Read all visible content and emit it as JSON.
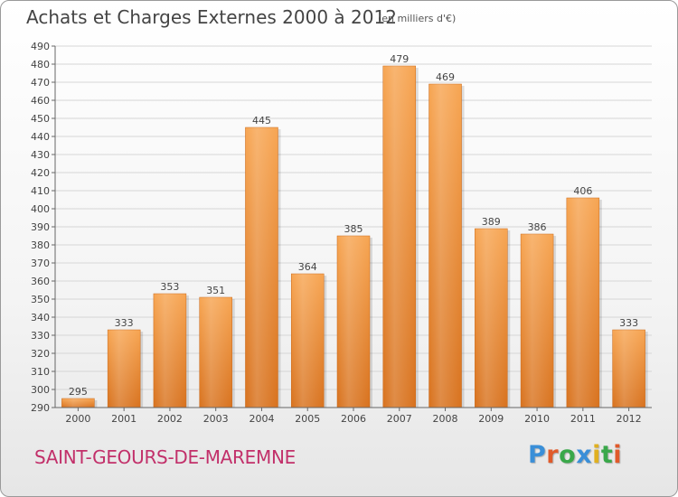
{
  "header": {
    "title": "Achats et Charges Externes 2000 à 2012",
    "subtitle": "(en milliers d'€)"
  },
  "footer": {
    "commune": "SAINT-GEOURS-DE-MAREMNE",
    "logo": {
      "letters": [
        "P",
        "r",
        "o",
        "x",
        "i",
        "t",
        "i"
      ],
      "colors": [
        "#3a8fd8",
        "#e05a2a",
        "#3aa84a",
        "#3a8fd8",
        "#e0b020",
        "#3aa84a",
        "#e05a2a"
      ]
    }
  },
  "chart_data": {
    "type": "bar",
    "categories": [
      "2000",
      "2001",
      "2002",
      "2003",
      "2004",
      "2005",
      "2006",
      "2007",
      "2008",
      "2009",
      "2010",
      "2011",
      "2012"
    ],
    "values": [
      295,
      333,
      353,
      351,
      445,
      364,
      385,
      479,
      469,
      389,
      386,
      406,
      333
    ],
    "ylim": [
      290,
      490
    ],
    "yticks": [
      290,
      300,
      310,
      320,
      330,
      340,
      350,
      360,
      370,
      380,
      390,
      400,
      410,
      420,
      430,
      440,
      450,
      460,
      470,
      480,
      490
    ],
    "grid": true,
    "bar_color": "#f0913a",
    "data_labels": true
  }
}
